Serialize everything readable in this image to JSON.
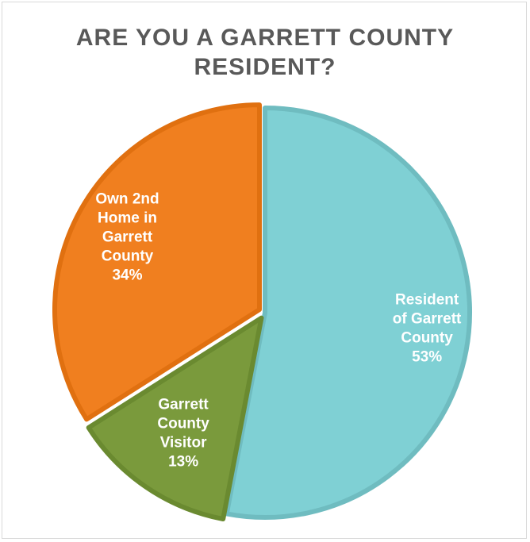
{
  "chart_data": {
    "type": "pie",
    "title_lines": [
      "ARE YOU A GARRETT COUNTY",
      "RESIDENT?"
    ],
    "slices": [
      {
        "label_lines": [
          "Resident",
          "of Garrett",
          "County",
          "53%"
        ],
        "value": 53,
        "color": "#7fd0d4",
        "edge": "#6fbcc0"
      },
      {
        "label_lines": [
          "Garrett",
          "County",
          "Visitor",
          "13%"
        ],
        "value": 13,
        "color": "#7a9a3c",
        "edge": "#6a8a30"
      },
      {
        "label_lines": [
          "Own 2nd",
          "Home in",
          "Garrett",
          "County",
          "34%"
        ],
        "value": 34,
        "color": "#f07f1f",
        "edge": "#e07010"
      }
    ]
  }
}
